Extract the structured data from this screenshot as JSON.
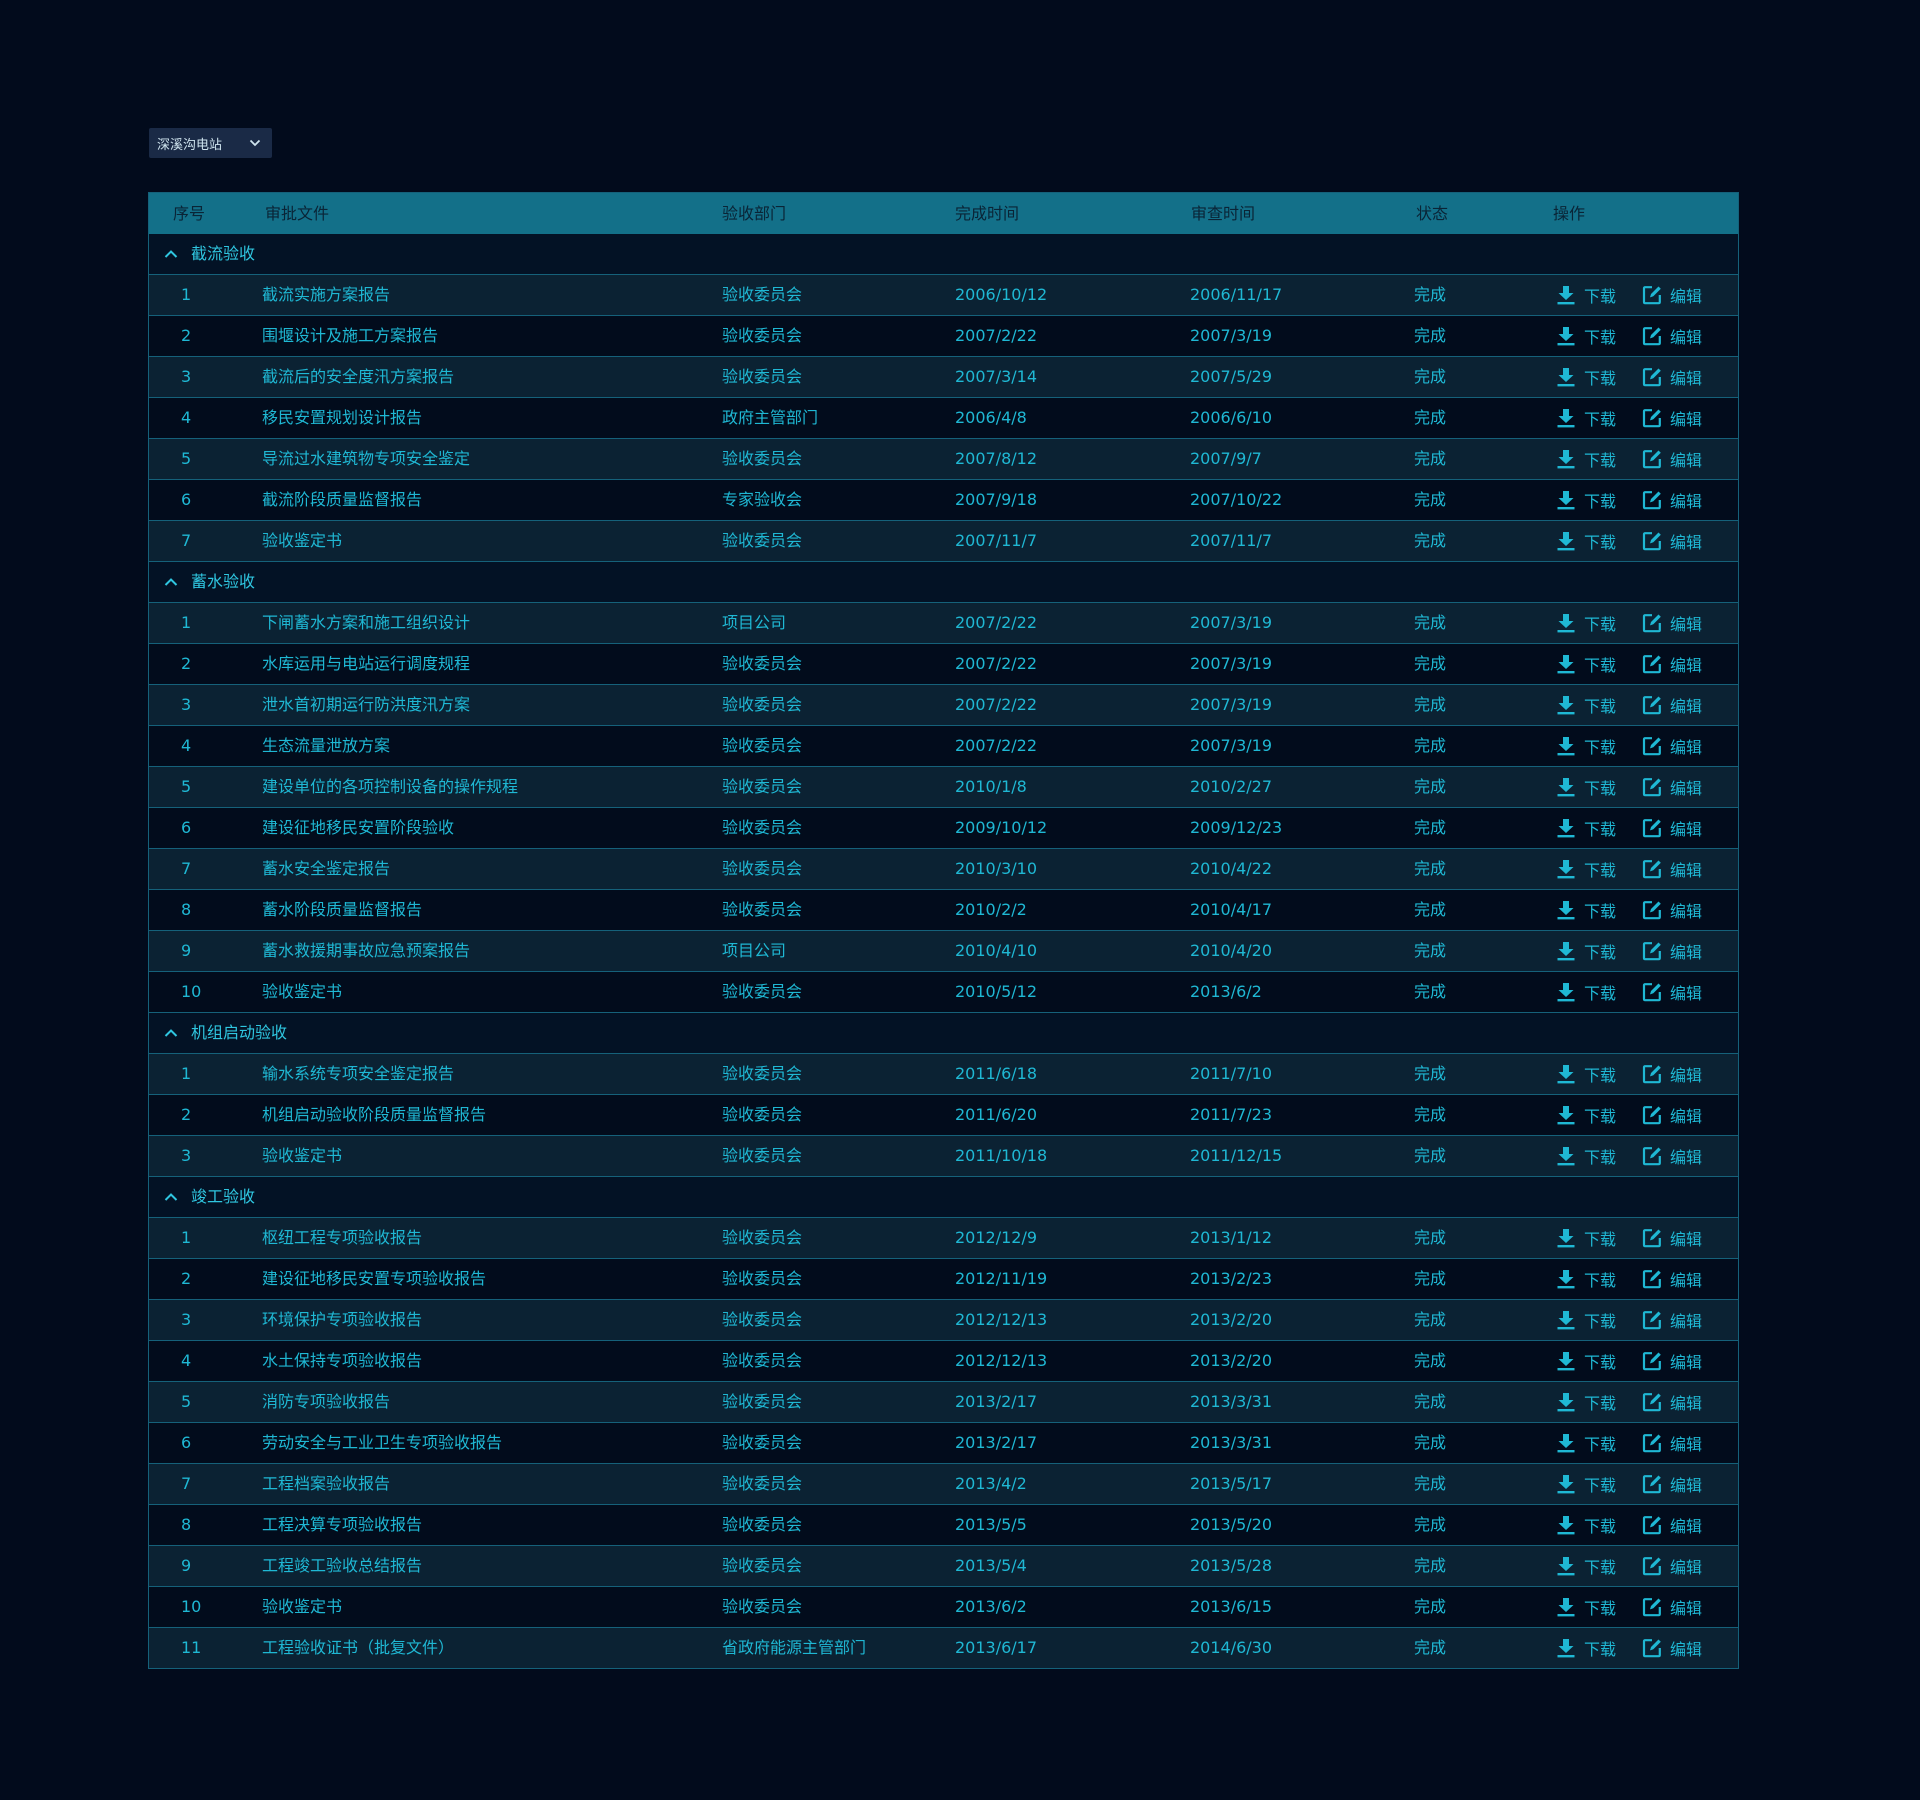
{
  "station_select": {
    "value": "深溪沟电站"
  },
  "table": {
    "headers": {
      "index": "序号",
      "document": "审批文件",
      "department": "验收部门",
      "complete": "完成时间",
      "review": "审查时间",
      "status": "状态",
      "actions": "操作"
    },
    "actions": {
      "download": "下载",
      "edit": "编辑"
    },
    "groups": [
      {
        "title": "截流验收",
        "rows": [
          {
            "no": "1",
            "doc": "截流实施方案报告",
            "dept": "验收委员会",
            "done": "2006/10/12",
            "review": "2006/11/17",
            "status": "完成"
          },
          {
            "no": "2",
            "doc": "围堰设计及施工方案报告",
            "dept": "验收委员会",
            "done": "2007/2/22",
            "review": "2007/3/19",
            "status": "完成"
          },
          {
            "no": "3",
            "doc": "截流后的安全度汛方案报告",
            "dept": "验收委员会",
            "done": "2007/3/14",
            "review": "2007/5/29",
            "status": "完成"
          },
          {
            "no": "4",
            "doc": "移民安置规划设计报告",
            "dept": "政府主管部门",
            "done": "2006/4/8",
            "review": "2006/6/10",
            "status": "完成"
          },
          {
            "no": "5",
            "doc": "导流过水建筑物专项安全鉴定",
            "dept": "验收委员会",
            "done": "2007/8/12",
            "review": "2007/9/7",
            "status": "完成"
          },
          {
            "no": "6",
            "doc": "截流阶段质量监督报告",
            "dept": "专家验收会",
            "done": "2007/9/18",
            "review": "2007/10/22",
            "status": "完成"
          },
          {
            "no": "7",
            "doc": "验收鉴定书",
            "dept": "验收委员会",
            "done": "2007/11/7",
            "review": "2007/11/7",
            "status": "完成"
          }
        ]
      },
      {
        "title": "蓄水验收",
        "rows": [
          {
            "no": "1",
            "doc": "下闸蓄水方案和施工组织设计",
            "dept": "项目公司",
            "done": "2007/2/22",
            "review": "2007/3/19",
            "status": "完成"
          },
          {
            "no": "2",
            "doc": "水库运用与电站运行调度规程",
            "dept": "验收委员会",
            "done": "2007/2/22",
            "review": "2007/3/19",
            "status": "完成"
          },
          {
            "no": "3",
            "doc": "泄水首初期运行防洪度汛方案",
            "dept": "验收委员会",
            "done": "2007/2/22",
            "review": "2007/3/19",
            "status": "完成"
          },
          {
            "no": "4",
            "doc": "生态流量泄放方案",
            "dept": "验收委员会",
            "done": "2007/2/22",
            "review": "2007/3/19",
            "status": "完成"
          },
          {
            "no": "5",
            "doc": "建设单位的各项控制设备的操作规程",
            "dept": "验收委员会",
            "done": "2010/1/8",
            "review": "2010/2/27",
            "status": "完成"
          },
          {
            "no": "6",
            "doc": "建设征地移民安置阶段验收",
            "dept": "验收委员会",
            "done": "2009/10/12",
            "review": "2009/12/23",
            "status": "完成"
          },
          {
            "no": "7",
            "doc": "蓄水安全鉴定报告",
            "dept": "验收委员会",
            "done": "2010/3/10",
            "review": "2010/4/22",
            "status": "完成"
          },
          {
            "no": "8",
            "doc": "蓄水阶段质量监督报告",
            "dept": "验收委员会",
            "done": "2010/2/2",
            "review": "2010/4/17",
            "status": "完成"
          },
          {
            "no": "9",
            "doc": "蓄水救援期事故应急预案报告",
            "dept": "项目公司",
            "done": "2010/4/10",
            "review": "2010/4/20",
            "status": "完成"
          },
          {
            "no": "10",
            "doc": "验收鉴定书",
            "dept": "验收委员会",
            "done": "2010/5/12",
            "review": "2013/6/2",
            "status": "完成"
          }
        ]
      },
      {
        "title": "机组启动验收",
        "rows": [
          {
            "no": "1",
            "doc": "输水系统专项安全鉴定报告",
            "dept": "验收委员会",
            "done": "2011/6/18",
            "review": "2011/7/10",
            "status": "完成"
          },
          {
            "no": "2",
            "doc": "机组启动验收阶段质量监督报告",
            "dept": "验收委员会",
            "done": "2011/6/20",
            "review": "2011/7/23",
            "status": "完成"
          },
          {
            "no": "3",
            "doc": "验收鉴定书",
            "dept": "验收委员会",
            "done": "2011/10/18",
            "review": "2011/12/15",
            "status": "完成"
          }
        ]
      },
      {
        "title": "竣工验收",
        "rows": [
          {
            "no": "1",
            "doc": "枢纽工程专项验收报告",
            "dept": "验收委员会",
            "done": "2012/12/9",
            "review": "2013/1/12",
            "status": "完成"
          },
          {
            "no": "2",
            "doc": "建设征地移民安置专项验收报告",
            "dept": "验收委员会",
            "done": "2012/11/19",
            "review": "2013/2/23",
            "status": "完成"
          },
          {
            "no": "3",
            "doc": "环境保护专项验收报告",
            "dept": "验收委员会",
            "done": "2012/12/13",
            "review": "2013/2/20",
            "status": "完成"
          },
          {
            "no": "4",
            "doc": "水土保持专项验收报告",
            "dept": "验收委员会",
            "done": "2012/12/13",
            "review": "2013/2/20",
            "status": "完成"
          },
          {
            "no": "5",
            "doc": "消防专项验收报告",
            "dept": "验收委员会",
            "done": "2013/2/17",
            "review": "2013/3/31",
            "status": "完成"
          },
          {
            "no": "6",
            "doc": "劳动安全与工业卫生专项验收报告",
            "dept": "验收委员会",
            "done": "2013/2/17",
            "review": "2013/3/31",
            "status": "完成"
          },
          {
            "no": "7",
            "doc": "工程档案验收报告",
            "dept": "验收委员会",
            "done": "2013/4/2",
            "review": "2013/5/17",
            "status": "完成"
          },
          {
            "no": "8",
            "doc": "工程决算专项验收报告",
            "dept": "验收委员会",
            "done": "2013/5/5",
            "review": "2013/5/20",
            "status": "完成"
          },
          {
            "no": "9",
            "doc": "工程竣工验收总结报告",
            "dept": "验收委员会",
            "done": "2013/5/4",
            "review": "2013/5/28",
            "status": "完成"
          },
          {
            "no": "10",
            "doc": "验收鉴定书",
            "dept": "验收委员会",
            "done": "2013/6/2",
            "review": "2013/6/15",
            "status": "完成"
          },
          {
            "no": "11",
            "doc": "工程验收证书（批复文件）",
            "dept": "省政府能源主管部门",
            "done": "2013/6/17",
            "review": "2014/6/30",
            "status": "完成"
          }
        ]
      }
    ]
  }
}
